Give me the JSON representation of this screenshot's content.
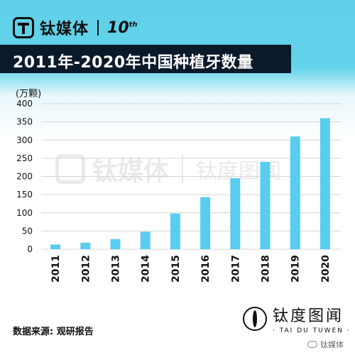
{
  "brand": {
    "name": "钛媒体",
    "anniversary": "10",
    "anniversary_suffix": "th"
  },
  "title": "2011年-2020年中国种植牙数量",
  "watermark": {
    "left_text": "钛媒体",
    "right_text": "钛度图闻",
    "right_sub": "TAI DU TUWEN"
  },
  "source": "数据来源: 观研报告",
  "footer_brand": {
    "cn": "钛度图闻",
    "en": "· TAI DU TUWEN ·"
  },
  "wechat": "钛媒体",
  "colors": {
    "bar": "#58cdf0",
    "title_bg": "#0b1a2b",
    "header_bg": "#5fd0e8"
  },
  "chart_data": {
    "type": "bar",
    "title": "2011年-2020年中国种植牙数量",
    "ylabel": "(万颗)",
    "xlabel": "",
    "categories": [
      "2011",
      "2012",
      "2013",
      "2014",
      "2015",
      "2016",
      "2017",
      "2018",
      "2019",
      "2020"
    ],
    "values": [
      13,
      18,
      28,
      48,
      98,
      143,
      195,
      240,
      310,
      360
    ],
    "ylim": [
      0,
      400
    ],
    "yticks": [
      0,
      50,
      100,
      150,
      200,
      250,
      300,
      350,
      400
    ],
    "grid": true,
    "legend": "none"
  }
}
